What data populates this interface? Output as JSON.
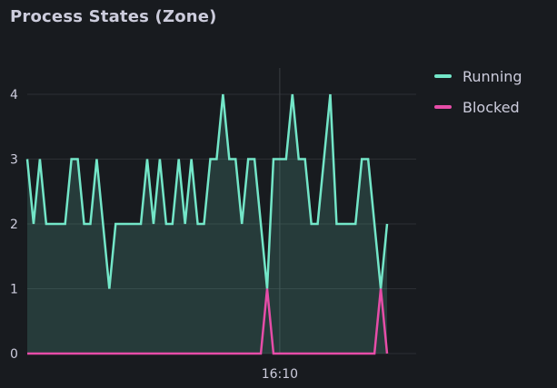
{
  "panel": {
    "title": "Process States (Zone)"
  },
  "colors": {
    "running": "#73e6c8",
    "blocked": "#e64da8",
    "grid": "#2c2f34",
    "background": "#181b1f"
  },
  "chart_data": {
    "type": "area",
    "ylim": [
      0,
      4
    ],
    "y_ticks": [
      "0",
      "1",
      "2",
      "3",
      "4"
    ],
    "x_ticks": [
      {
        "index": 40,
        "label": "16:10"
      }
    ],
    "cursor_index": 40,
    "legend_position": "right",
    "grid": true,
    "series": [
      {
        "name": "Running",
        "color": "#73e6c8",
        "fill": true,
        "values": [
          3,
          2,
          3,
          2,
          2,
          2,
          2,
          3,
          3,
          2,
          2,
          3,
          2,
          1,
          2,
          2,
          2,
          2,
          2,
          3,
          2,
          3,
          2,
          2,
          3,
          2,
          3,
          2,
          2,
          3,
          3,
          4,
          3,
          3,
          2,
          3,
          3,
          2,
          1,
          3,
          3,
          3,
          4,
          3,
          3,
          2,
          2,
          3,
          4,
          2,
          2,
          2,
          2,
          3,
          3,
          2,
          1,
          2
        ]
      },
      {
        "name": "Blocked",
        "color": "#e64da8",
        "fill": false,
        "values": [
          0,
          0,
          0,
          0,
          0,
          0,
          0,
          0,
          0,
          0,
          0,
          0,
          0,
          0,
          0,
          0,
          0,
          0,
          0,
          0,
          0,
          0,
          0,
          0,
          0,
          0,
          0,
          0,
          0,
          0,
          0,
          0,
          0,
          0,
          0,
          0,
          0,
          0,
          1,
          0,
          0,
          0,
          0,
          0,
          0,
          0,
          0,
          0,
          0,
          0,
          0,
          0,
          0,
          0,
          0,
          0,
          1,
          0
        ]
      }
    ]
  }
}
